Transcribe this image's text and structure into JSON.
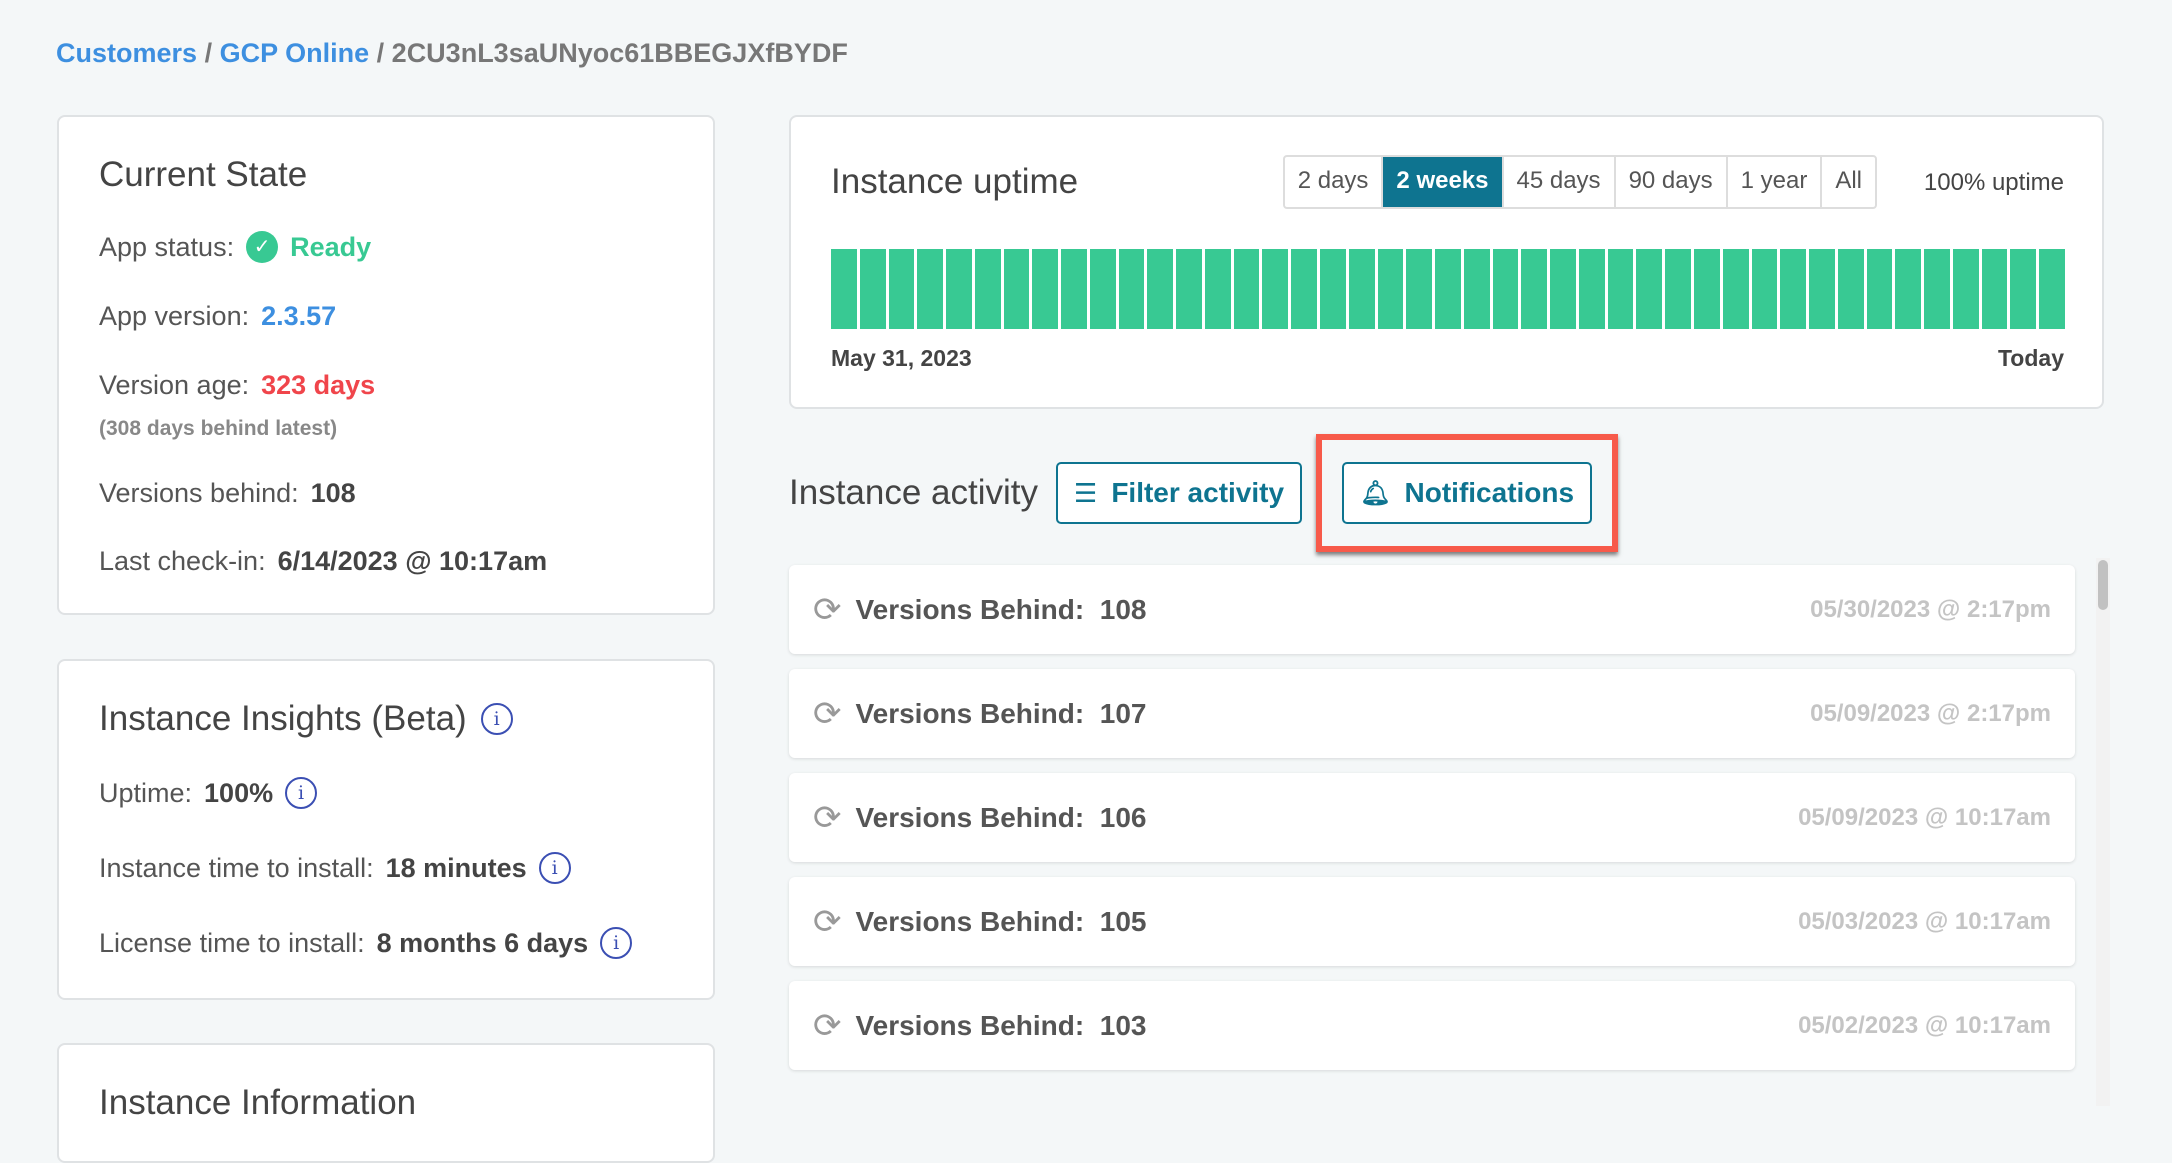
{
  "breadcrumb": {
    "customers": "Customers",
    "app": "GCP Online",
    "id": "2CU3nL3saUNyoc61BBEGJXfBYDF",
    "sep": "/"
  },
  "current_state": {
    "title": "Current State",
    "app_status_label": "App status:",
    "app_status": "Ready",
    "app_version_label": "App version:",
    "app_version": "2.3.57",
    "version_age_label": "Version age:",
    "version_age": "323 days",
    "version_age_note": "(308 days behind latest)",
    "versions_behind_label": "Versions behind:",
    "versions_behind": "108",
    "last_checkin_label": "Last check-in:",
    "last_checkin": "6/14/2023 @ 10:17am"
  },
  "insights": {
    "title": "Instance Insights (Beta)",
    "uptime_label": "Uptime:",
    "uptime": "100%",
    "instance_install_label": "Instance time to install:",
    "instance_install": "18 minutes",
    "license_install_label": "License time to install:",
    "license_install": "8 months 6 days"
  },
  "instance_info": {
    "title": "Instance Information"
  },
  "uptime": {
    "title": "Instance uptime",
    "tabs": [
      "2 days",
      "2 weeks",
      "45 days",
      "90 days",
      "1 year",
      "All"
    ],
    "active_tab": "2 weeks",
    "summary": "100% uptime",
    "start_label": "May 31, 2023",
    "end_label": "Today",
    "bar_count": 43,
    "bar_color": "#38c993"
  },
  "activity": {
    "title": "Instance activity",
    "filter_label": "Filter activity",
    "notifications_label": "Notifications",
    "items": [
      {
        "label": "Versions Behind:",
        "value": "108",
        "time": "05/30/2023 @ 2:17pm"
      },
      {
        "label": "Versions Behind:",
        "value": "107",
        "time": "05/09/2023 @ 2:17pm"
      },
      {
        "label": "Versions Behind:",
        "value": "106",
        "time": "05/09/2023 @ 10:17am"
      },
      {
        "label": "Versions Behind:",
        "value": "105",
        "time": "05/03/2023 @ 10:17am"
      },
      {
        "label": "Versions Behind:",
        "value": "103",
        "time": "05/02/2023 @ 10:17am"
      }
    ]
  },
  "colors": {
    "accent": "#0e7490",
    "link": "#3d8fe0",
    "ready": "#38c993",
    "danger": "#f0454b",
    "highlight": "#f75a4a"
  }
}
